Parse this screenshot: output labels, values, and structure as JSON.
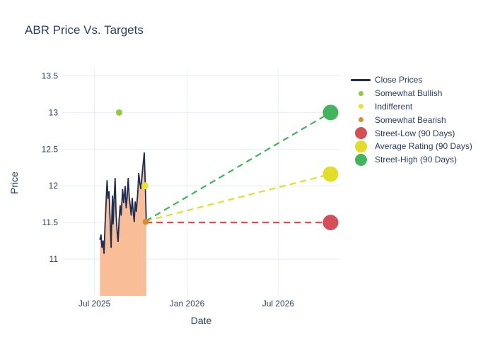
{
  "title": "ABR Price Vs. Targets",
  "axes": {
    "x_title": "Date",
    "y_title": "Price"
  },
  "colors": {
    "text": "#2a3f5f",
    "grid": "#ebf0f8",
    "background": "#ffffff",
    "close_line": "#1f2c4f",
    "close_fill": "#f9bd97",
    "street_low": "#d44f57",
    "average_rating": "#e2dd28",
    "street_high": "#43b45c",
    "somewhat_bullish": "#94c83d",
    "indifferent": "#e6e22e",
    "somewhat_bearish": "#dd8a33"
  },
  "legend": {
    "items": [
      {
        "label": "Close Prices",
        "marker": "line",
        "color": "#1f2c4f"
      },
      {
        "label": "Somewhat Bullish",
        "marker": "dot-small",
        "color": "#94c83d"
      },
      {
        "label": "Indifferent",
        "marker": "dot-small",
        "color": "#e6e22e"
      },
      {
        "label": "Somewhat Bearish",
        "marker": "dot-small",
        "color": "#dd8a33"
      },
      {
        "label": "Street-Low (90 Days)",
        "marker": "dot-large",
        "color": "#d44f57"
      },
      {
        "label": "Average Rating (90 Days)",
        "marker": "dot-large",
        "color": "#e2dd28"
      },
      {
        "label": "Street-High (90 Days)",
        "marker": "dot-large",
        "color": "#43b45c"
      }
    ]
  },
  "chart_data": {
    "type": "line",
    "title": "ABR Price Vs. Targets",
    "xlabel": "Date",
    "ylabel": "Price",
    "grid": true,
    "legend_position": "right",
    "ylim": [
      10.5,
      13.6
    ],
    "y_ticks": [
      11,
      11.5,
      12,
      12.5,
      13,
      13.5
    ],
    "y_tick_labels": [
      "11",
      "11.5",
      "12",
      "12.5",
      "13",
      "13.5"
    ],
    "x_range": [
      "2025-04-28",
      "2026-11-01"
    ],
    "x_ticks": [
      {
        "date": "2025-07-01",
        "label": "Jul 2025"
      },
      {
        "date": "2026-01-01",
        "label": "Jan 2026"
      },
      {
        "date": "2026-07-01",
        "label": "Jul 2026"
      }
    ],
    "close_prices": {
      "name": "Close Prices",
      "color": "#1f2c4f",
      "fill_color": "#f9bd97",
      "fill_to_bottom": true,
      "points": [
        [
          "2025-07-12",
          11.27
        ],
        [
          "2025-07-14",
          11.33
        ],
        [
          "2025-07-16",
          11.16
        ],
        [
          "2025-07-18",
          11.25
        ],
        [
          "2025-07-20",
          11.08
        ],
        [
          "2025-07-22",
          11.45
        ],
        [
          "2025-07-24",
          11.75
        ],
        [
          "2025-07-26",
          12.07
        ],
        [
          "2025-07-28",
          11.83
        ],
        [
          "2025-07-30",
          11.92
        ],
        [
          "2025-08-01",
          11.57
        ],
        [
          "2025-08-03",
          11.16
        ],
        [
          "2025-08-05",
          11.7
        ],
        [
          "2025-08-06",
          11.86
        ],
        [
          "2025-08-07",
          11.48
        ],
        [
          "2025-08-09",
          11.8
        ],
        [
          "2025-08-11",
          12.1
        ],
        [
          "2025-08-13",
          11.6
        ],
        [
          "2025-08-15",
          11.38
        ],
        [
          "2025-08-17",
          11.24
        ],
        [
          "2025-08-19",
          11.55
        ],
        [
          "2025-08-21",
          11.73
        ],
        [
          "2025-08-23",
          11.6
        ],
        [
          "2025-08-26",
          11.95
        ],
        [
          "2025-08-28",
          11.77
        ],
        [
          "2025-08-31",
          11.99
        ],
        [
          "2025-09-02",
          11.7
        ],
        [
          "2025-09-04",
          11.85
        ],
        [
          "2025-09-06",
          12.1
        ],
        [
          "2025-09-08",
          11.85
        ],
        [
          "2025-09-10",
          11.73
        ],
        [
          "2025-09-12",
          11.6
        ],
        [
          "2025-09-14",
          11.83
        ],
        [
          "2025-09-16",
          11.65
        ],
        [
          "2025-09-18",
          11.51
        ],
        [
          "2025-09-20",
          11.78
        ],
        [
          "2025-09-22",
          11.65
        ],
        [
          "2025-09-25",
          11.9
        ],
        [
          "2025-09-27",
          12.17
        ],
        [
          "2025-09-29",
          12.05
        ],
        [
          "2025-10-01",
          11.96
        ],
        [
          "2025-10-03",
          12.1
        ],
        [
          "2025-10-05",
          12.25
        ],
        [
          "2025-10-07",
          12.38
        ],
        [
          "2025-10-08",
          12.45
        ],
        [
          "2025-10-10",
          12.0
        ],
        [
          "2025-10-12",
          11.5
        ]
      ]
    },
    "sentiment_markers": [
      {
        "name": "Somewhat Bullish",
        "date": "2025-08-19",
        "price": 13.0,
        "color": "#94c83d",
        "radius": 4.5
      },
      {
        "name": "Indifferent",
        "date": "2025-10-09",
        "price": 12.0,
        "color": "#e6e22e",
        "radius": 5
      },
      {
        "name": "Somewhat Bearish",
        "date": "2025-10-11",
        "price": 11.51,
        "color": "#dd8a33",
        "radius": 4.5
      }
    ],
    "targets": {
      "anchor": {
        "date": "2025-10-11",
        "price": 11.52
      },
      "target_date": "2026-10-13",
      "items": [
        {
          "name": "Street-Low (90 Days)",
          "price": 11.5,
          "color": "#d44f57"
        },
        {
          "name": "Average Rating (90 Days)",
          "price": 12.16,
          "color": "#e2dd28"
        },
        {
          "name": "Street-High (90 Days)",
          "price": 13.0,
          "color": "#43b45c"
        }
      ]
    }
  }
}
